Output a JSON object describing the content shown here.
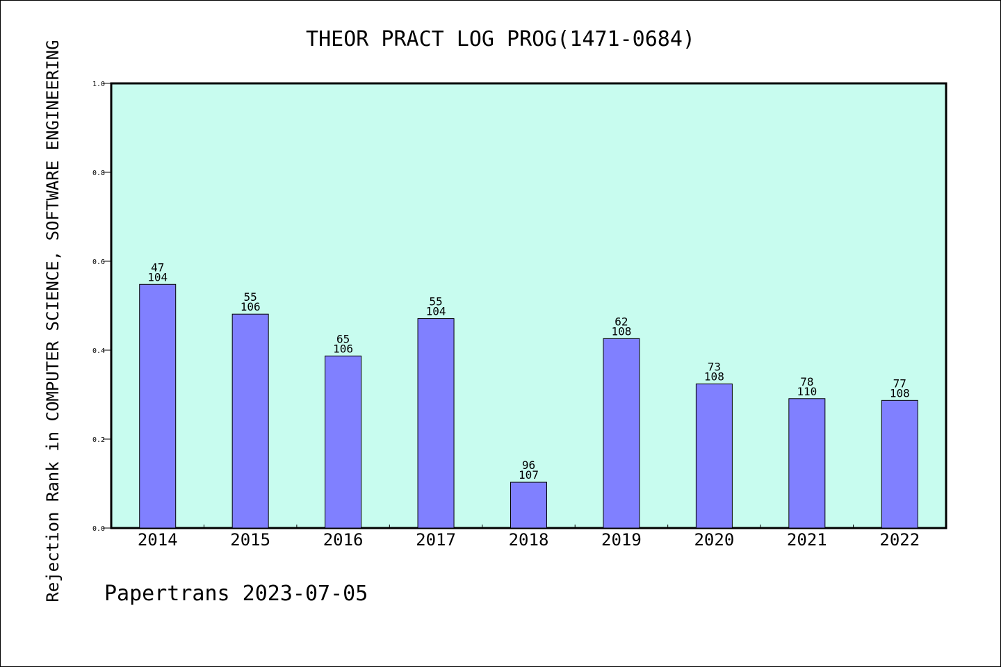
{
  "chart_data": {
    "type": "bar",
    "title": "THEOR PRACT LOG PROG(1471-0684)",
    "xlabel": "",
    "ylabel": "Rejection Rank in COMPUTER SCIENCE, SOFTWARE ENGINEERING",
    "footer": "Papertrans 2023-07-05",
    "categories": [
      "2014",
      "2015",
      "2016",
      "2017",
      "2018",
      "2019",
      "2020",
      "2021",
      "2022"
    ],
    "values": [
      0.548,
      0.481,
      0.387,
      0.471,
      0.103,
      0.426,
      0.324,
      0.291,
      0.287
    ],
    "labels_top": [
      "47",
      "55",
      "65",
      "55",
      "96",
      "62",
      "73",
      "78",
      "77"
    ],
    "labels_bottom": [
      "104",
      "106",
      "106",
      "104",
      "107",
      "108",
      "108",
      "110",
      "108"
    ],
    "ylim": [
      0,
      1.0
    ],
    "yticks": [
      "0.0",
      "0.2",
      "0.4",
      "0.6",
      "0.8",
      "1.0"
    ],
    "grid": false,
    "colors": {
      "plot_background": "#c8fcef",
      "bar_fill": "#8080ff",
      "bar_stroke": "#000000"
    }
  }
}
